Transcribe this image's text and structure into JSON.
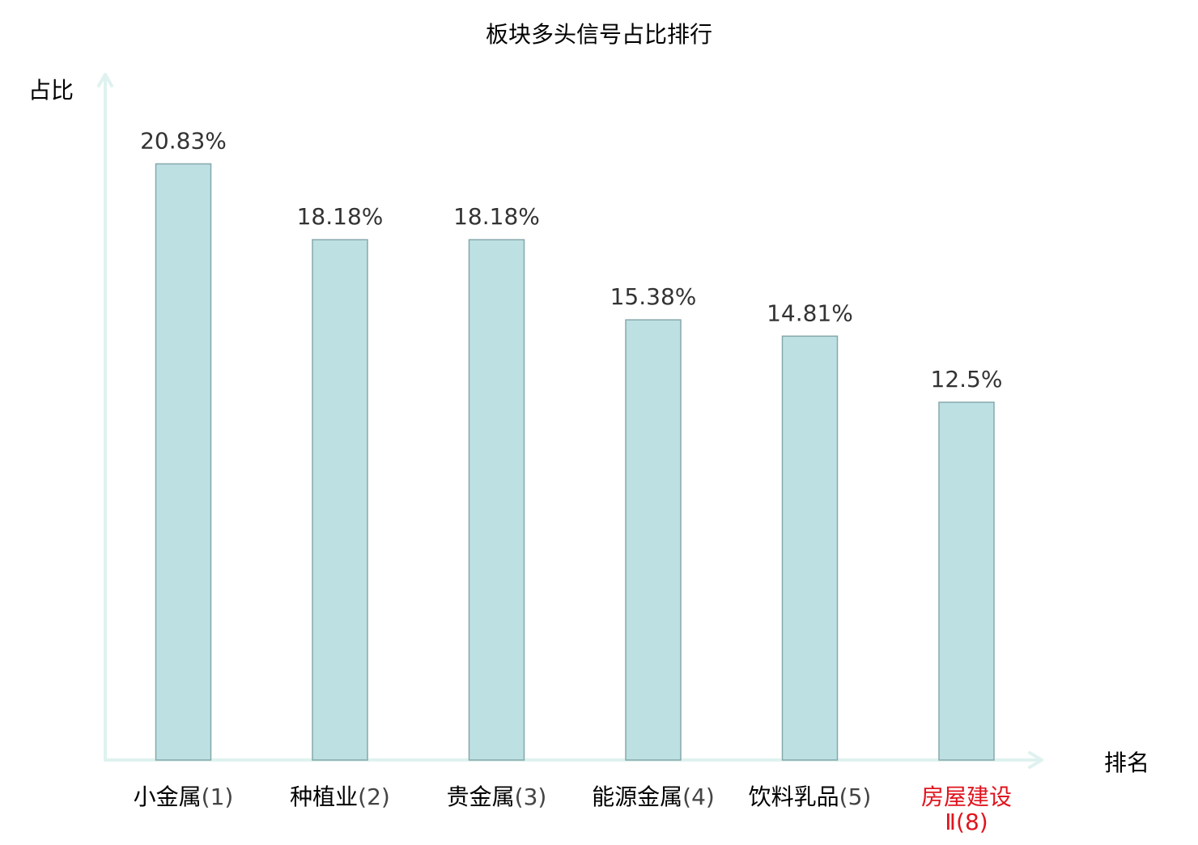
{
  "chart_data": {
    "type": "bar",
    "title": "板块多头信号占比排行",
    "ylabel": "占比",
    "xlabel": "排名",
    "ylim": [
      0,
      25
    ],
    "grid": false,
    "categories": [
      {
        "name": "小金属",
        "rank": "(1)",
        "name_line2": "",
        "highlight": false
      },
      {
        "name": "种植业",
        "rank": "(2)",
        "name_line2": "",
        "highlight": false
      },
      {
        "name": "贵金属",
        "rank": "(3)",
        "name_line2": "",
        "highlight": false
      },
      {
        "name": "能源金属",
        "rank": "(4)",
        "name_line2": "",
        "highlight": false
      },
      {
        "name": "饮料乳品",
        "rank": "(5)",
        "name_line2": "",
        "highlight": false
      },
      {
        "name": "房屋建设",
        "rank": "(8)",
        "name_line2": "Ⅱ",
        "highlight": true
      }
    ],
    "values": [
      20.83,
      18.18,
      18.18,
      15.38,
      14.81,
      12.5
    ],
    "value_labels": [
      "20.83%",
      "18.18%",
      "18.18%",
      "15.38%",
      "14.81%",
      "12.5%"
    ],
    "colors": {
      "bar_fill": "#bde0e3",
      "bar_stroke": "#86a8ab",
      "axis": "#dff2ef",
      "text": "#000000",
      "value_text": "#333333",
      "rank_text": "#444444",
      "highlight": "#e0141e"
    }
  }
}
